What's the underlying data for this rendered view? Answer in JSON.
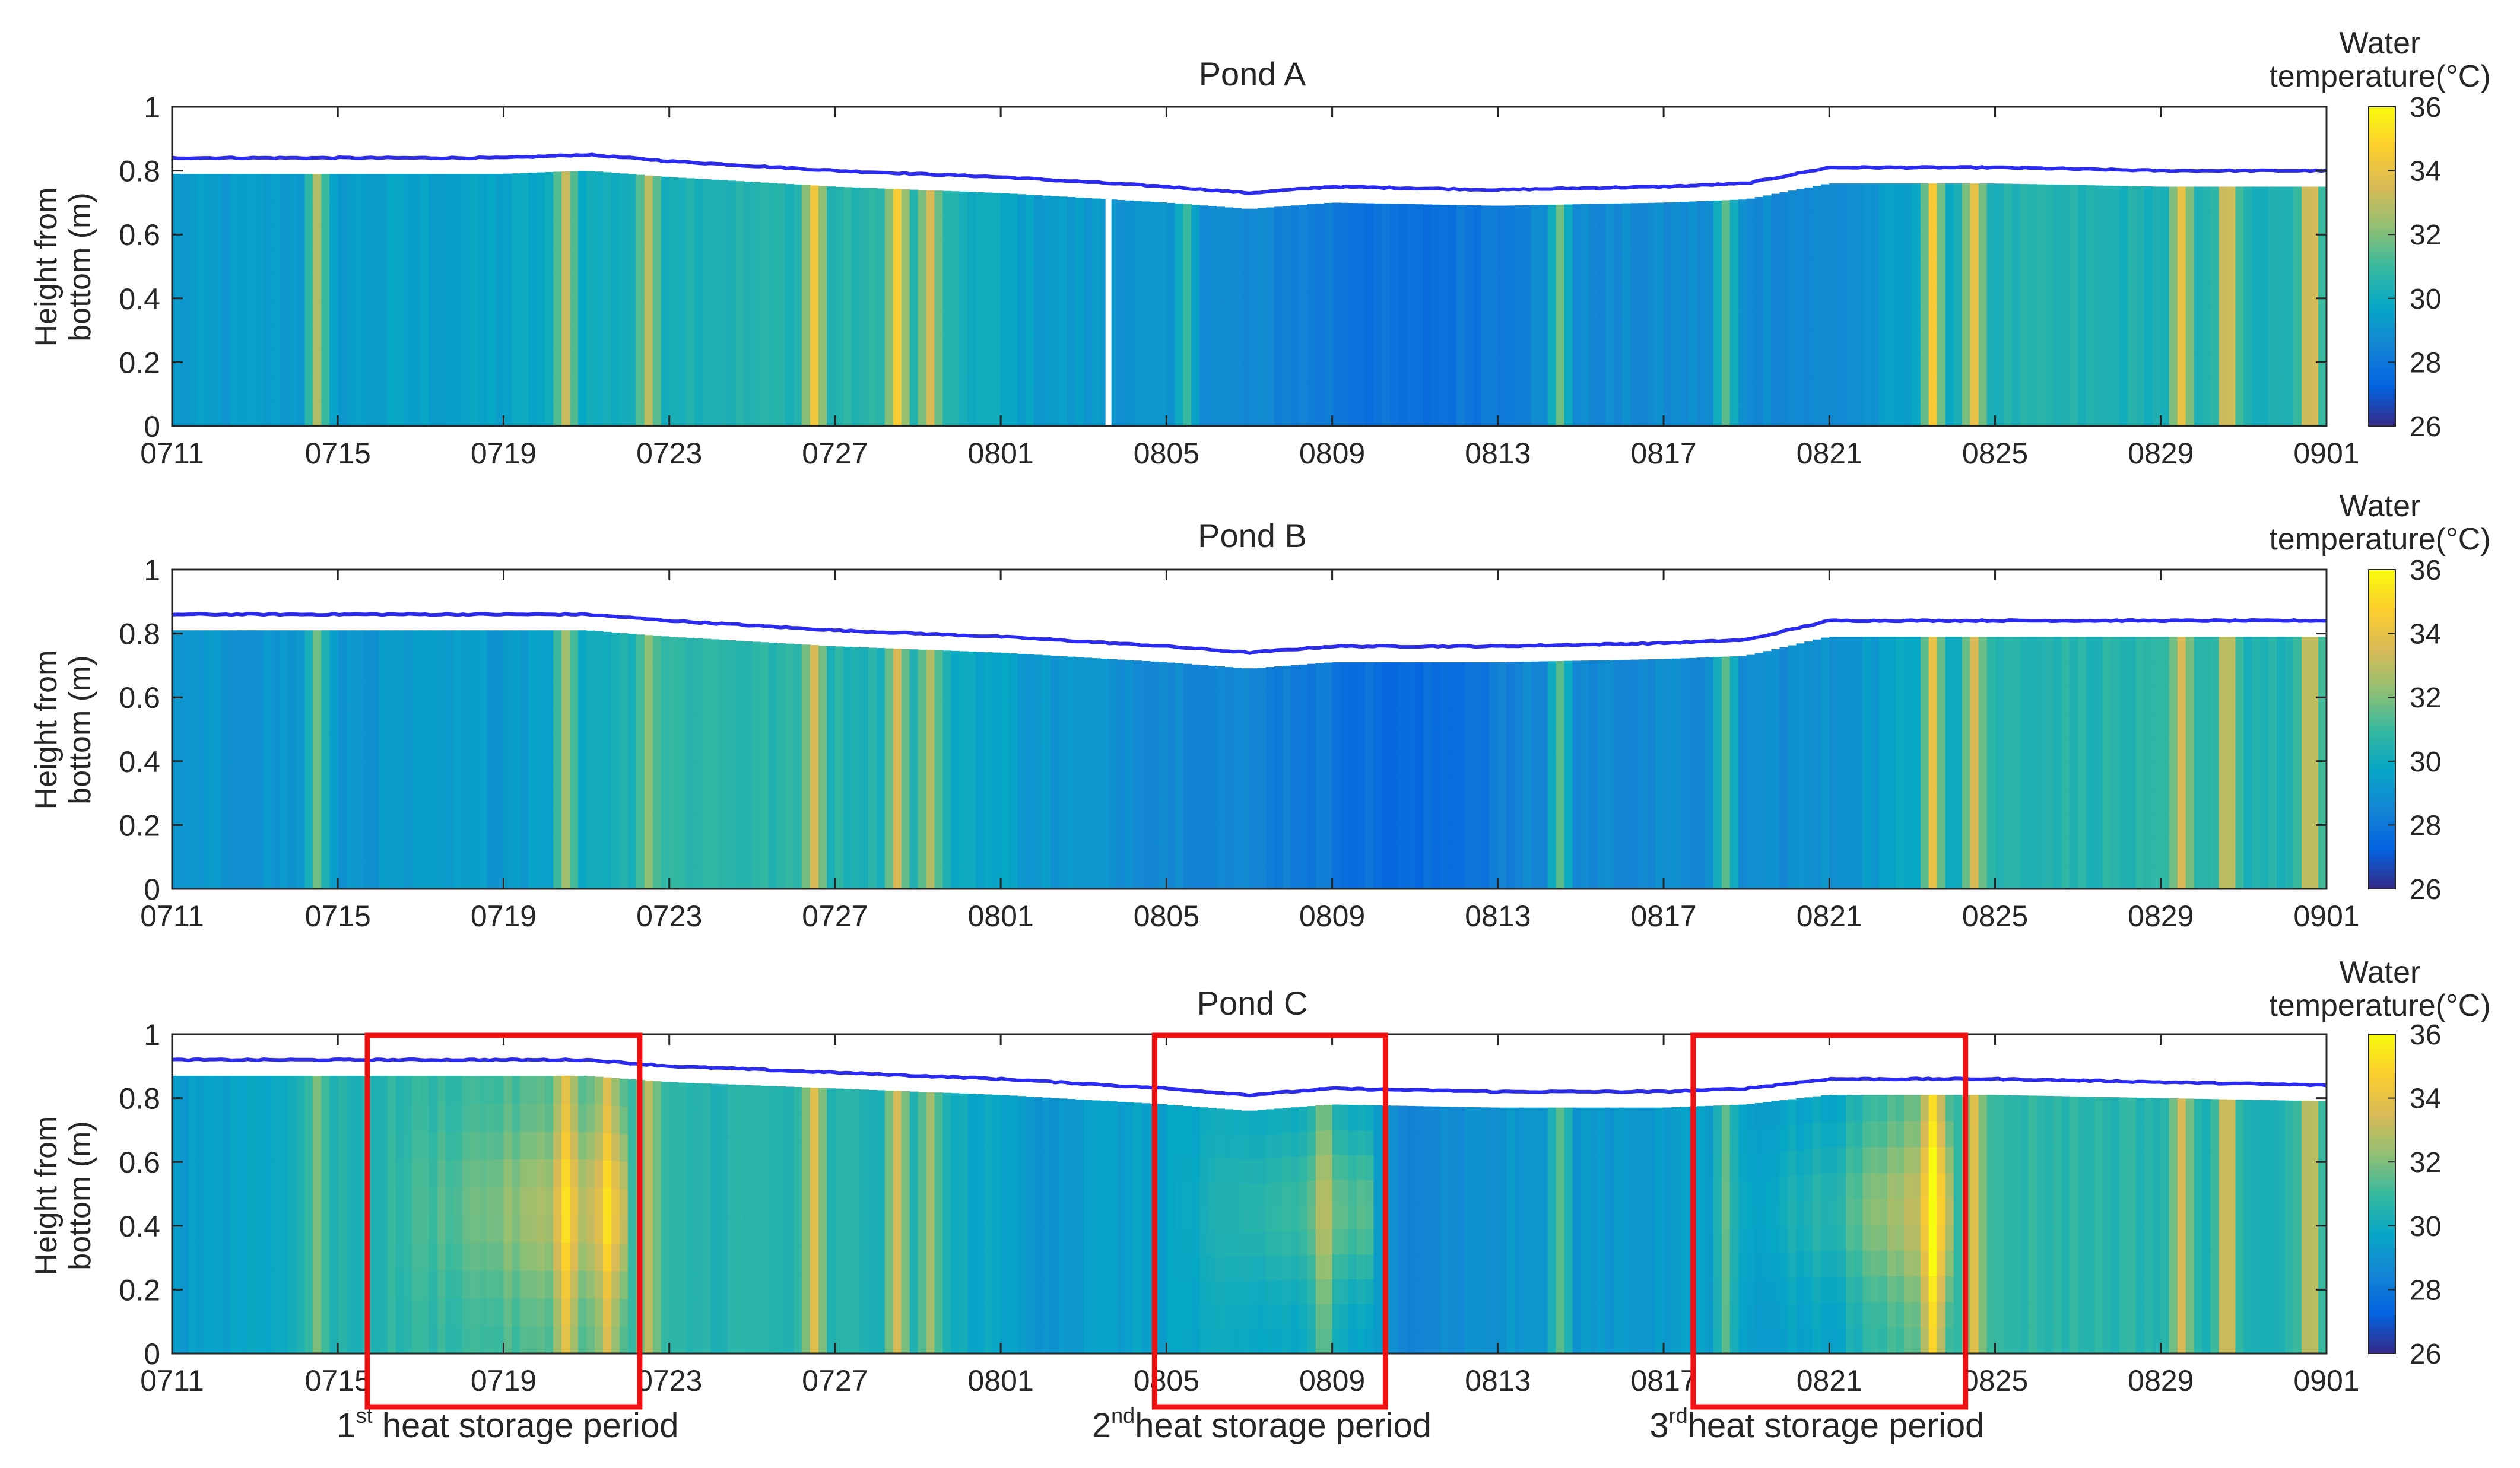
{
  "chart_data": [
    {
      "type": "heatmap",
      "title": "Pond A",
      "xlabel": "",
      "ylabel_lines": [
        "Height from",
        "bottom (m)"
      ],
      "x_ticks": [
        "0711",
        "0715",
        "0719",
        "0723",
        "0727",
        "0801",
        "0805",
        "0809",
        "0813",
        "0817",
        "0821",
        "0825",
        "0829",
        "0901"
      ],
      "x_range_days": [
        0,
        52
      ],
      "y_ticks": [
        "0",
        "0.2",
        "0.4",
        "0.6",
        "0.8",
        "1"
      ],
      "ylim": [
        0,
        1
      ],
      "colorbar": {
        "title_lines": [
          "Water",
          "temperature(°C)"
        ],
        "ticks": [
          "26",
          "28",
          "30",
          "32",
          "34",
          "36"
        ],
        "range": [
          26,
          36
        ]
      },
      "water_level_day": [
        0,
        4,
        8,
        10,
        12,
        16,
        20,
        24,
        26,
        28,
        32,
        36,
        38,
        40,
        44,
        48,
        52
      ],
      "water_level_m": [
        0.84,
        0.84,
        0.84,
        0.85,
        0.83,
        0.8,
        0.78,
        0.75,
        0.73,
        0.75,
        0.74,
        0.75,
        0.76,
        0.81,
        0.81,
        0.8,
        0.8
      ],
      "surface_offset_m": 0.05,
      "gap_day": 22.6,
      "warm_events": [
        {
          "day": 3.5,
          "peak": 32.8
        },
        {
          "day": 9.5,
          "peak": 33.2
        },
        {
          "day": 11.5,
          "peak": 33.0
        },
        {
          "day": 15.5,
          "peak": 34.3
        },
        {
          "day": 17.5,
          "peak": 34.6
        },
        {
          "day": 18.3,
          "peak": 33.5
        },
        {
          "day": 24.5,
          "peak": 31.0
        },
        {
          "day": 33.5,
          "peak": 31.8
        },
        {
          "day": 37.5,
          "peak": 31.5
        },
        {
          "day": 42.5,
          "peak": 34.5
        },
        {
          "day": 43.5,
          "peak": 34.0
        },
        {
          "day": 48.5,
          "peak": 34.0
        },
        {
          "day": 49.6,
          "peak": 34.6
        },
        {
          "day": 51.6,
          "peak": 34.6
        }
      ],
      "base_temp": [
        {
          "day": 0,
          "t": 29.2
        },
        {
          "day": 8,
          "t": 29.6
        },
        {
          "day": 12,
          "t": 30.4
        },
        {
          "day": 18,
          "t": 30.6
        },
        {
          "day": 21,
          "t": 29.4
        },
        {
          "day": 27,
          "t": 28.4
        },
        {
          "day": 30,
          "t": 27.6
        },
        {
          "day": 33,
          "t": 28.6
        },
        {
          "day": 38,
          "t": 28.8
        },
        {
          "day": 40,
          "t": 28.6
        },
        {
          "day": 44,
          "t": 30.4
        },
        {
          "day": 52,
          "t": 30.2
        }
      ],
      "heat_storage_periods": []
    },
    {
      "type": "heatmap",
      "title": "Pond B",
      "xlabel": "",
      "ylabel_lines": [
        "Height from",
        "bottom (m)"
      ],
      "x_ticks": [
        "0711",
        "0715",
        "0719",
        "0723",
        "0727",
        "0801",
        "0805",
        "0809",
        "0813",
        "0817",
        "0821",
        "0825",
        "0829",
        "0901"
      ],
      "x_range_days": [
        0,
        52
      ],
      "y_ticks": [
        "0",
        "0.2",
        "0.4",
        "0.6",
        "0.8",
        "1"
      ],
      "ylim": [
        0,
        1
      ],
      "colorbar": {
        "title_lines": [
          "Water",
          "temperature(°C)"
        ],
        "ticks": [
          "26",
          "28",
          "30",
          "32",
          "34",
          "36"
        ],
        "range": [
          26,
          36
        ]
      },
      "water_level_day": [
        0,
        4,
        8,
        10,
        12,
        16,
        20,
        24,
        26,
        28,
        32,
        36,
        38,
        40,
        44,
        48,
        52
      ],
      "water_level_m": [
        0.86,
        0.86,
        0.86,
        0.86,
        0.84,
        0.81,
        0.79,
        0.76,
        0.74,
        0.76,
        0.76,
        0.77,
        0.78,
        0.84,
        0.84,
        0.84,
        0.84
      ],
      "surface_offset_m": 0.05,
      "gap_day": null,
      "warm_events": [
        {
          "day": 3.5,
          "peak": 31.8
        },
        {
          "day": 9.5,
          "peak": 32.5
        },
        {
          "day": 11.5,
          "peak": 32.2
        },
        {
          "day": 15.5,
          "peak": 33.5
        },
        {
          "day": 17.5,
          "peak": 33.5
        },
        {
          "day": 18.3,
          "peak": 32.8
        },
        {
          "day": 33.5,
          "peak": 31.5
        },
        {
          "day": 37.5,
          "peak": 31.5
        },
        {
          "day": 42.5,
          "peak": 34.0
        },
        {
          "day": 43.5,
          "peak": 33.5
        },
        {
          "day": 48.5,
          "peak": 33.5
        },
        {
          "day": 49.6,
          "peak": 34.0
        },
        {
          "day": 51.6,
          "peak": 34.0
        }
      ],
      "base_temp": [
        {
          "day": 0,
          "t": 29.0
        },
        {
          "day": 8,
          "t": 29.3
        },
        {
          "day": 12,
          "t": 30.8
        },
        {
          "day": 18,
          "t": 30.4
        },
        {
          "day": 21,
          "t": 29.2
        },
        {
          "day": 27,
          "t": 28.3
        },
        {
          "day": 30,
          "t": 27.4
        },
        {
          "day": 33,
          "t": 28.6
        },
        {
          "day": 38,
          "t": 28.8
        },
        {
          "day": 40,
          "t": 28.9
        },
        {
          "day": 44,
          "t": 30.6
        },
        {
          "day": 52,
          "t": 30.4
        }
      ],
      "heat_storage_periods": []
    },
    {
      "type": "heatmap",
      "title": "Pond C",
      "xlabel": "",
      "ylabel_lines": [
        "Height from",
        "bottom (m)"
      ],
      "x_ticks": [
        "0711",
        "0715",
        "0719",
        "0723",
        "0727",
        "0801",
        "0805",
        "0809",
        "0813",
        "0817",
        "0821",
        "0825",
        "0829",
        "0901"
      ],
      "x_range_days": [
        0,
        52
      ],
      "y_ticks": [
        "0",
        "0.2",
        "0.4",
        "0.6",
        "0.8",
        "1"
      ],
      "ylim": [
        0,
        1
      ],
      "colorbar": {
        "title_lines": [
          "Water",
          "temperature(°C)"
        ],
        "ticks": [
          "26",
          "28",
          "30",
          "32",
          "34",
          "36"
        ],
        "range": [
          26,
          36
        ]
      },
      "water_level_day": [
        0,
        4,
        8,
        10,
        12,
        16,
        20,
        24,
        26,
        28,
        32,
        36,
        38,
        40,
        44,
        48,
        52
      ],
      "water_level_m": [
        0.92,
        0.92,
        0.92,
        0.92,
        0.9,
        0.88,
        0.86,
        0.83,
        0.81,
        0.83,
        0.82,
        0.82,
        0.83,
        0.86,
        0.86,
        0.85,
        0.84
      ],
      "surface_offset_m": 0.05,
      "gap_day": null,
      "warm_events": [
        {
          "day": 3.5,
          "peak": 32.0
        },
        {
          "day": 9.5,
          "peak": 33.8
        },
        {
          "day": 10.5,
          "peak": 33.5
        },
        {
          "day": 11.5,
          "peak": 33.0
        },
        {
          "day": 15.5,
          "peak": 33.8
        },
        {
          "day": 17.5,
          "peak": 33.5
        },
        {
          "day": 18.3,
          "peak": 32.5
        },
        {
          "day": 27.8,
          "peak": 32.0
        },
        {
          "day": 33.5,
          "peak": 31.5
        },
        {
          "day": 37.5,
          "peak": 31.5
        },
        {
          "day": 42.5,
          "peak": 34.8
        },
        {
          "day": 43.5,
          "peak": 33.8
        },
        {
          "day": 48.5,
          "peak": 33.5
        },
        {
          "day": 49.6,
          "peak": 34.2
        },
        {
          "day": 51.6,
          "peak": 34.0
        }
      ],
      "base_temp": [
        {
          "day": 0,
          "t": 29.3
        },
        {
          "day": 5,
          "t": 30.6
        },
        {
          "day": 10,
          "t": 31.4
        },
        {
          "day": 12,
          "t": 30.6
        },
        {
          "day": 18,
          "t": 30.4
        },
        {
          "day": 21,
          "t": 29.2
        },
        {
          "day": 24,
          "t": 29.6
        },
        {
          "day": 28,
          "t": 29.8
        },
        {
          "day": 30,
          "t": 28.6
        },
        {
          "day": 33,
          "t": 29.2
        },
        {
          "day": 38,
          "t": 29.4
        },
        {
          "day": 40,
          "t": 29.6
        },
        {
          "day": 42,
          "t": 31.4
        },
        {
          "day": 44,
          "t": 30.8
        },
        {
          "day": 52,
          "t": 30.4
        }
      ],
      "heat_storage_periods": [
        {
          "num": "1",
          "suffix": "st",
          "label": " heat storage period",
          "start_day": 5,
          "end_day": 11,
          "center_day": 8.1
        },
        {
          "num": "2",
          "suffix": "nd",
          "label": "heat storage period",
          "start_day": 24,
          "end_day": 29,
          "center_day": 26.3
        },
        {
          "num": "3",
          "suffix": "rd",
          "label": "heat storage period",
          "start_day": 37,
          "end_day": 43,
          "center_day": 39.7
        }
      ]
    }
  ]
}
